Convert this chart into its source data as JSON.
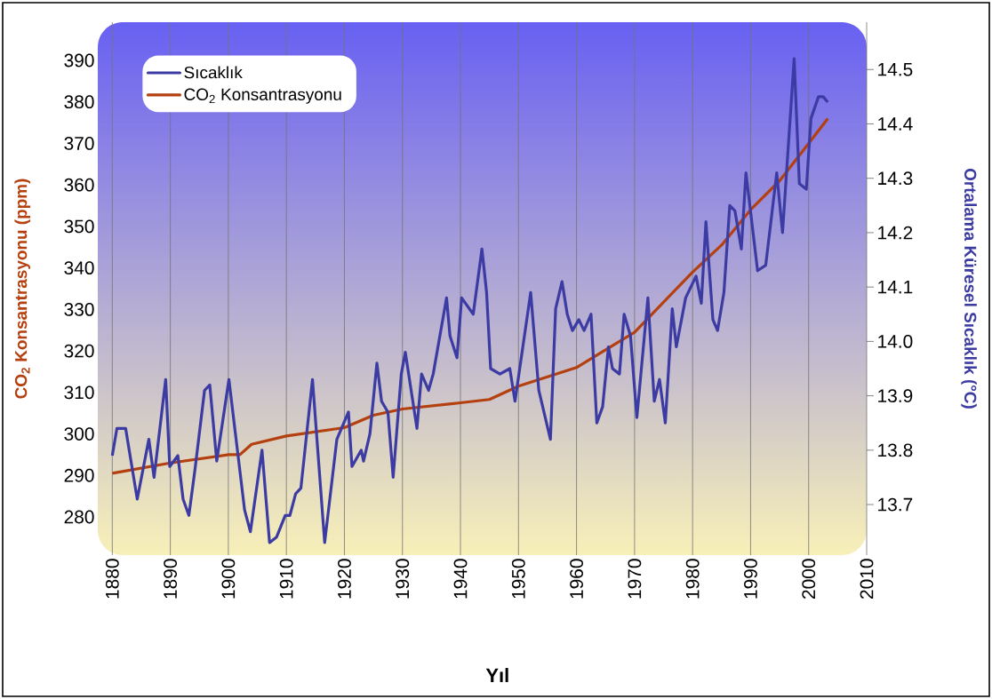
{
  "chart_data": {
    "type": "line",
    "xlabel": "Yıl",
    "ylabel": "CO$_{2}$ Konsantrasyonu (ppm)",
    "y2label": "Ortalama Küresel Sıcaklık (°C)",
    "xlim": [
      1877.5,
      2010
    ],
    "xticks": [
      1880,
      1890,
      1900,
      1910,
      1920,
      1930,
      1940,
      1950,
      1960,
      1970,
      1980,
      1990,
      2000,
      2010
    ],
    "ylim": [
      270.8,
      399.2
    ],
    "yticks": [
      280,
      290,
      300,
      310,
      320,
      330,
      340,
      350,
      360,
      370,
      380,
      390
    ],
    "y2lim": [
      13.607,
      14.587
    ],
    "y2ticks": [
      13.7,
      13.8,
      13.9,
      {
        "value": 14.0,
        "label": "14.0"
      },
      14.1,
      14.2,
      14.3,
      14.4,
      14.5
    ],
    "grid": "x",
    "legend": "top left",
    "marker": "none",
    "line_style": "solid",
    "series": [
      {
        "name": "Sıcaklık",
        "color": "#3b3ba3",
        "axis": "y2",
        "x": [
          1880,
          1880.8,
          1882.3,
          1884.3,
          1886.3,
          1887.2,
          1889.2,
          1889.9,
          1891.3,
          1892.2,
          1893.2,
          1894.2,
          1895.9,
          1896.8,
          1898.0,
          1900.1,
          1902.8,
          1903.8,
          1905.8,
          1907.1,
          1908.3,
          1909.8,
          1910.6,
          1911.6,
          1912.5,
          1914.5,
          1916.6,
          1918.7,
          1920.7,
          1921.3,
          1922.9,
          1923.3,
          1924.4,
          1925.6,
          1926.4,
          1927.5,
          1928.4,
          1929.8,
          1930.5,
          1932.5,
          1933.3,
          1934.5,
          1935.3,
          1937.6,
          1938.2,
          1939.4,
          1940.2,
          1942.2,
          1943.7,
          1944.5,
          1945.2,
          1946.8,
          1948.5,
          1949.4,
          1952.1,
          1953.5,
          1955.5,
          1956.4,
          1957.5,
          1958.4,
          1959.3,
          1960.4,
          1961.3,
          1962.5,
          1963.5,
          1964.5,
          1965.5,
          1966.2,
          1967.4,
          1968.2,
          1969.3,
          1970.4,
          1972.3,
          1973.4,
          1974.3,
          1975.3,
          1976.5,
          1977.2,
          1978.8,
          1980.6,
          1981.5,
          1982.3,
          1983.5,
          1984.3,
          1985.4,
          1986.4,
          1987.3,
          1988.4,
          1989.2,
          1991.2,
          1992.6,
          1994.5,
          1995.5,
          1997.5,
          1998.4,
          1999.6,
          2000.4,
          2001.7,
          2002.5,
          2003.3
        ],
        "values": [
          13.79,
          13.84,
          13.84,
          13.71,
          13.82,
          13.75,
          13.93,
          13.77,
          13.79,
          13.71,
          13.68,
          13.76,
          13.91,
          13.92,
          13.78,
          13.93,
          13.69,
          13.65,
          13.8,
          13.63,
          13.64,
          13.68,
          13.68,
          13.72,
          13.73,
          13.93,
          13.63,
          13.82,
          13.87,
          13.77,
          13.8,
          13.78,
          13.83,
          13.96,
          13.89,
          13.87,
          13.75,
          13.94,
          13.98,
          13.84,
          13.94,
          13.91,
          13.94,
          14.08,
          14.01,
          13.97,
          14.08,
          14.05,
          14.17,
          14.09,
          13.95,
          13.94,
          13.95,
          13.89,
          14.09,
          13.91,
          13.82,
          14.06,
          14.11,
          14.05,
          14.02,
          14.04,
          14.02,
          14.05,
          13.85,
          13.88,
          13.99,
          13.95,
          13.94,
          14.05,
          14.01,
          13.86,
          14.08,
          13.89,
          13.93,
          13.85,
          14.06,
          13.99,
          14.08,
          14.12,
          14.07,
          14.22,
          14.04,
          14.02,
          14.09,
          14.25,
          14.24,
          14.17,
          14.31,
          14.13,
          14.14,
          14.31,
          14.2,
          14.52,
          14.29,
          14.28,
          14.41,
          14.45,
          14.45,
          14.44
        ]
      },
      {
        "name": "CO$_{2}$ Konsantrasyonu",
        "color": "#b5400f",
        "x": [
          1880,
          1890,
          1900,
          1902,
          1904,
          1910,
          1920,
          1925,
          1930,
          1940,
          1945,
          1950,
          1960,
          1964,
          1970,
          1980,
          1985,
          1990,
          1995,
          2000,
          2003.3
        ],
        "values": [
          290.5,
          293,
          295,
          295,
          297.5,
          299.5,
          301.5,
          304.5,
          306,
          307.5,
          308.3,
          311.5,
          316,
          319.4,
          324.5,
          339,
          345.5,
          354,
          361,
          370,
          376
        ]
      }
    ]
  }
}
